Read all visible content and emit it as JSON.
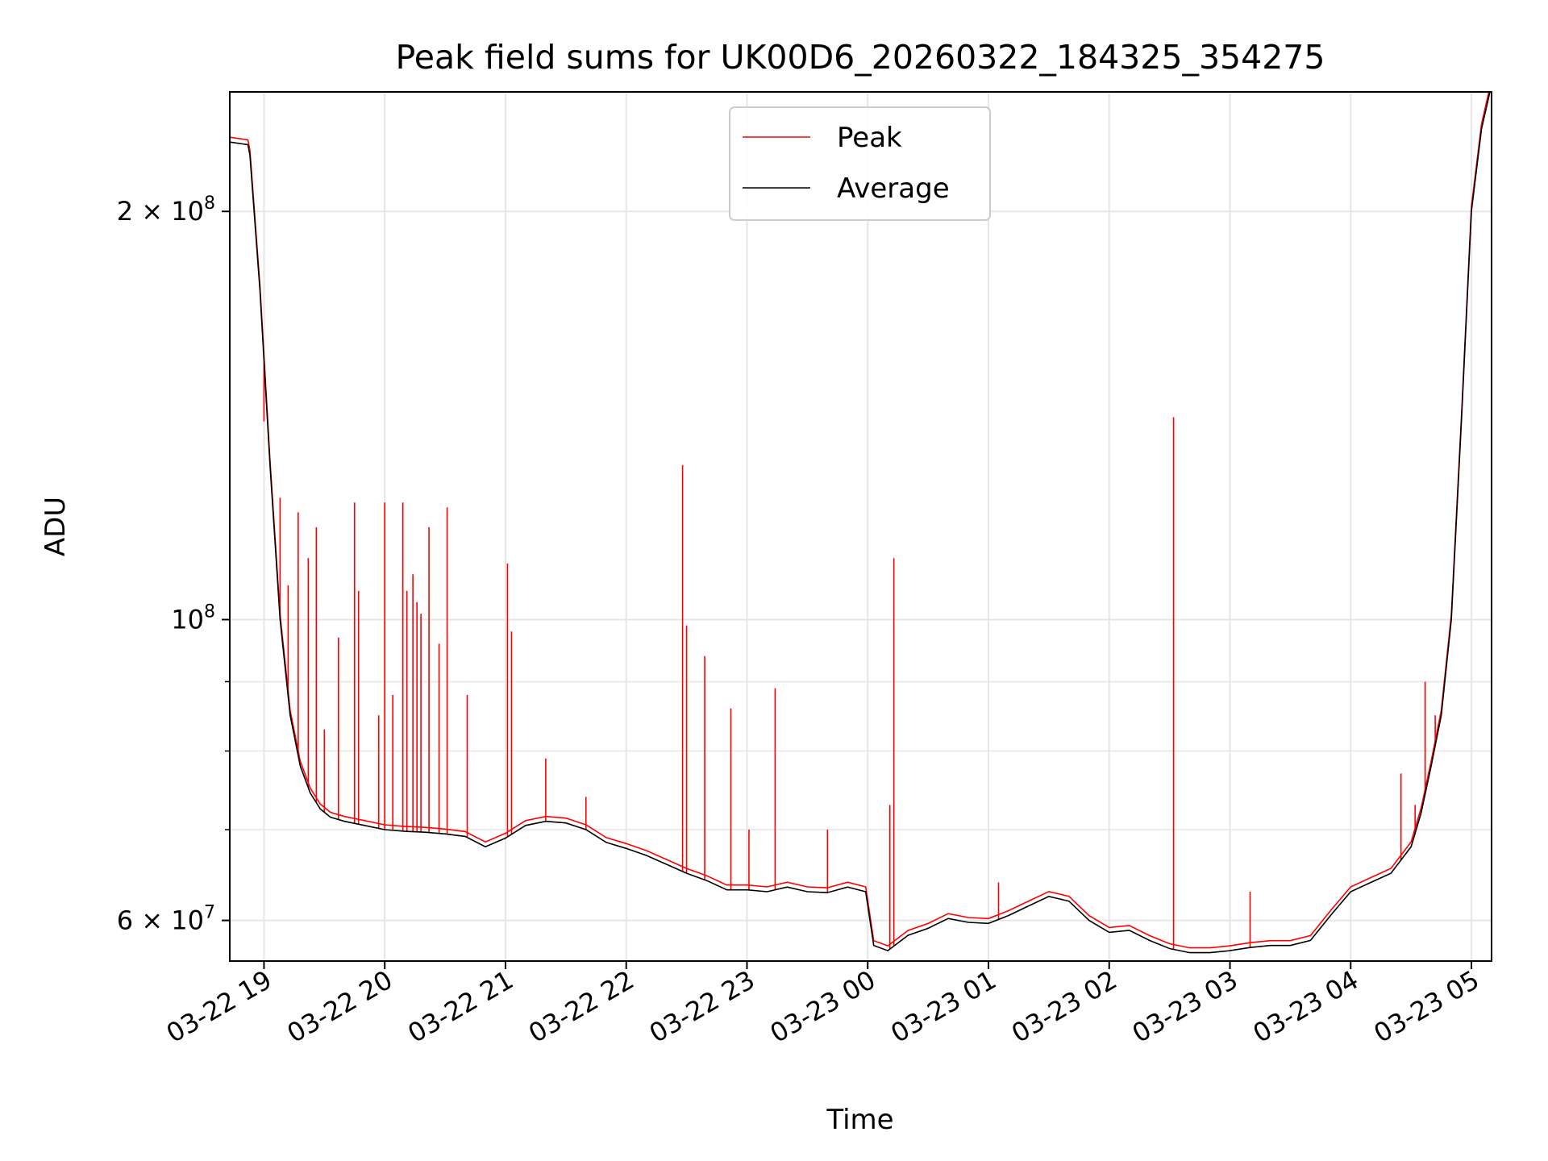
{
  "colors": {
    "peak": "#ff0000",
    "average": "#000000",
    "grid": "#e6e6e6"
  },
  "chart_data": {
    "type": "line",
    "title": "Peak field sums for UK00D6_20260322_184325_354275",
    "xlabel": "Time",
    "ylabel": "ADU",
    "yscale": "log",
    "grid": true,
    "legend_position": "top-center",
    "xlim": [
      "2026-03-22 18:43",
      "2026-03-23 05:10"
    ],
    "ylim": [
      56000000,
      245000000
    ],
    "x_ticks": [
      {
        "value": "2026-03-22 19:00",
        "label": "03-22 19"
      },
      {
        "value": "2026-03-22 20:00",
        "label": "03-22 20"
      },
      {
        "value": "2026-03-22 21:00",
        "label": "03-22 21"
      },
      {
        "value": "2026-03-22 22:00",
        "label": "03-22 22"
      },
      {
        "value": "2026-03-22 23:00",
        "label": "03-22 23"
      },
      {
        "value": "2026-03-23 00:00",
        "label": "03-23 00"
      },
      {
        "value": "2026-03-23 01:00",
        "label": "03-23 01"
      },
      {
        "value": "2026-03-23 02:00",
        "label": "03-23 02"
      },
      {
        "value": "2026-03-23 03:00",
        "label": "03-23 03"
      },
      {
        "value": "2026-03-23 04:00",
        "label": "03-23 04"
      },
      {
        "value": "2026-03-23 05:00",
        "label": "03-23 05"
      }
    ],
    "y_major_ticks": [
      {
        "value": 60000000,
        "mantissa": "6",
        "exp": "7"
      },
      {
        "value": 100000000,
        "mantissa": "",
        "exp": "8"
      },
      {
        "value": 200000000,
        "mantissa": "2",
        "exp": "8"
      }
    ],
    "y_minor_ticks": [
      70000000,
      80000000,
      90000000
    ],
    "average": {
      "x": [
        "2026-03-22 18:43",
        "2026-03-22 18:52",
        "2026-03-22 18:53",
        "2026-03-22 18:58",
        "2026-03-22 19:03",
        "2026-03-22 19:08",
        "2026-03-22 19:13",
        "2026-03-22 19:18",
        "2026-03-22 19:23",
        "2026-03-22 19:28",
        "2026-03-22 19:33",
        "2026-03-22 19:40",
        "2026-03-22 19:50",
        "2026-03-22 20:00",
        "2026-03-22 20:10",
        "2026-03-22 20:20",
        "2026-03-22 20:30",
        "2026-03-22 20:40",
        "2026-03-22 20:50",
        "2026-03-22 21:00",
        "2026-03-22 21:10",
        "2026-03-22 21:20",
        "2026-03-22 21:30",
        "2026-03-22 21:40",
        "2026-03-22 21:50",
        "2026-03-22 22:00",
        "2026-03-22 22:10",
        "2026-03-22 22:20",
        "2026-03-22 22:30",
        "2026-03-22 22:40",
        "2026-03-22 22:50",
        "2026-03-22 23:00",
        "2026-03-22 23:10",
        "2026-03-22 23:20",
        "2026-03-22 23:30",
        "2026-03-22 23:40",
        "2026-03-22 23:50",
        "2026-03-22 23:59",
        "2026-03-23 00:03",
        "2026-03-23 00:10",
        "2026-03-23 00:20",
        "2026-03-23 00:30",
        "2026-03-23 00:40",
        "2026-03-23 00:50",
        "2026-03-23 01:00",
        "2026-03-23 01:10",
        "2026-03-23 01:20",
        "2026-03-23 01:30",
        "2026-03-23 01:40",
        "2026-03-23 01:50",
        "2026-03-23 02:00",
        "2026-03-23 02:10",
        "2026-03-23 02:20",
        "2026-03-23 02:30",
        "2026-03-23 02:40",
        "2026-03-23 02:50",
        "2026-03-23 03:00",
        "2026-03-23 03:10",
        "2026-03-23 03:20",
        "2026-03-23 03:30",
        "2026-03-23 03:40",
        "2026-03-23 03:50",
        "2026-03-23 04:00",
        "2026-03-23 04:10",
        "2026-03-23 04:20",
        "2026-03-23 04:30",
        "2026-03-23 04:35",
        "2026-03-23 04:40",
        "2026-03-23 04:45",
        "2026-03-23 04:50",
        "2026-03-23 04:55",
        "2026-03-23 05:00",
        "2026-03-23 05:05",
        "2026-03-23 05:10"
      ],
      "y": [
        225000000,
        224000000,
        220000000,
        175000000,
        130000000,
        100000000,
        85000000,
        78000000,
        74500000,
        72500000,
        71500000,
        71000000,
        70500000,
        70000000,
        69800000,
        69700000,
        69500000,
        69200000,
        68000000,
        69000000,
        70500000,
        71000000,
        70800000,
        70000000,
        68500000,
        67800000,
        67000000,
        66000000,
        65000000,
        64200000,
        63200000,
        63200000,
        63000000,
        63500000,
        63000000,
        62900000,
        63500000,
        63000000,
        57500000,
        57000000,
        58500000,
        59200000,
        60200000,
        59800000,
        59700000,
        60500000,
        61500000,
        62500000,
        62000000,
        60000000,
        58800000,
        59000000,
        58000000,
        57200000,
        56800000,
        56800000,
        57000000,
        57300000,
        57500000,
        57500000,
        58000000,
        60500000,
        63000000,
        64000000,
        65000000,
        68000000,
        72000000,
        78000000,
        85000000,
        100000000,
        140000000,
        200000000,
        230000000,
        248000000
      ]
    },
    "peak_spikes": {
      "x": [
        "2026-03-22 19:00",
        "2026-03-22 19:03",
        "2026-03-22 19:08",
        "2026-03-22 19:12",
        "2026-03-22 19:17",
        "2026-03-22 19:22",
        "2026-03-22 19:26",
        "2026-03-22 19:30",
        "2026-03-22 19:37",
        "2026-03-22 19:45",
        "2026-03-22 19:47",
        "2026-03-22 19:57",
        "2026-03-22 20:00",
        "2026-03-22 20:04",
        "2026-03-22 20:09",
        "2026-03-22 20:11",
        "2026-03-22 20:14",
        "2026-03-22 20:16",
        "2026-03-22 20:18",
        "2026-03-22 20:22",
        "2026-03-22 20:27",
        "2026-03-22 20:31",
        "2026-03-22 20:41",
        "2026-03-22 21:01",
        "2026-03-22 21:03",
        "2026-03-22 21:20",
        "2026-03-22 21:40",
        "2026-03-22 22:28",
        "2026-03-22 22:30",
        "2026-03-22 22:39",
        "2026-03-22 22:52",
        "2026-03-22 23:01",
        "2026-03-22 23:14",
        "2026-03-22 23:40",
        "2026-03-23 00:11",
        "2026-03-23 00:13",
        "2026-03-23 01:05",
        "2026-03-23 02:32",
        "2026-03-23 03:10",
        "2026-03-23 04:25",
        "2026-03-23 04:32",
        "2026-03-23 04:37",
        "2026-03-23 04:42"
      ],
      "y": [
        140000000,
        131000000,
        123000000,
        106000000,
        120000000,
        111000000,
        117000000,
        83000000,
        97000000,
        122000000,
        105000000,
        85000000,
        122000000,
        88000000,
        122000000,
        105000000,
        108000000,
        103000000,
        101000000,
        117000000,
        96000000,
        121000000,
        88000000,
        110000000,
        98000000,
        79000000,
        74000000,
        130000000,
        99000000,
        94000000,
        86000000,
        70000000,
        89000000,
        70000000,
        73000000,
        111000000,
        64000000,
        141000000,
        63000000,
        77000000,
        73000000,
        90000000,
        85000000
      ]
    },
    "series": [
      {
        "name": "Peak"
      },
      {
        "name": "Average"
      }
    ]
  }
}
